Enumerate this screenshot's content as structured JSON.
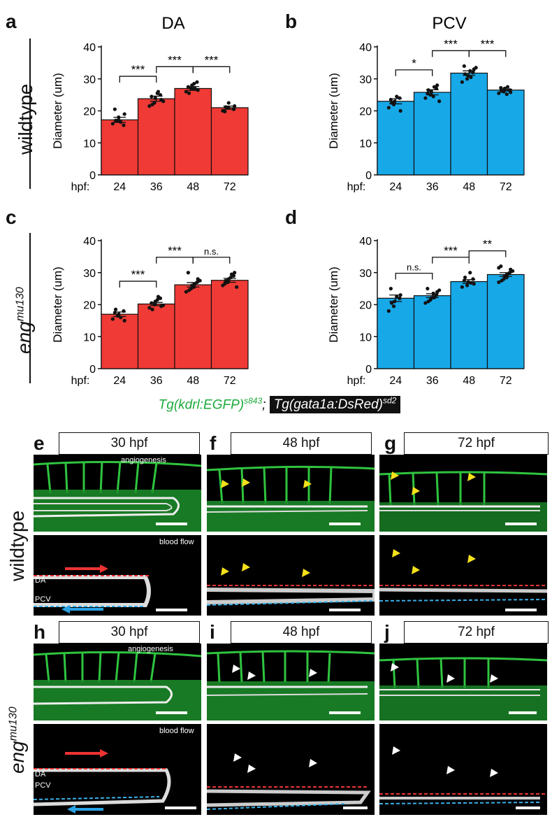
{
  "row_labels": {
    "wildtype": "wildtype",
    "mutant_gene": "eng",
    "mutant_allele": "mu130"
  },
  "panels": {
    "a": "a",
    "b": "b",
    "c": "c",
    "d": "d",
    "e": "e",
    "f": "f",
    "g": "g",
    "h": "h",
    "i": "i",
    "j": "j"
  },
  "colors": {
    "red_bar": "#ef3a35",
    "blue_bar": "#17a8e8",
    "green_text": "#1daa3c"
  },
  "legend": {
    "green_text": "Tg(kdrl:EGFP)",
    "green_sup": "s843",
    "separator": ";",
    "black_text": "Tg(gata1a:DsRed)",
    "black_sup": "sd2"
  },
  "chart_data": [
    {
      "id": "a",
      "type": "bar",
      "title": "DA",
      "ylabel": "Diameter (um)",
      "xprefix": "hpf:",
      "categories": [
        "24",
        "36",
        "48",
        "72"
      ],
      "values": [
        17.2,
        23.8,
        27.0,
        21.0
      ],
      "errors": [
        0.8,
        0.8,
        0.6,
        0.5
      ],
      "points": [
        [
          16,
          17,
          18,
          15.5,
          19,
          20.5,
          17,
          16.5
        ],
        [
          21.5,
          22.5,
          24,
          25,
          23.5,
          24.5,
          22,
          25.5,
          26,
          23
        ],
        [
          26,
          27,
          28,
          29,
          26.5,
          27.5,
          25.5,
          28.5,
          27
        ],
        [
          20,
          21,
          22.5,
          20.5,
          21.5,
          19.8,
          21.2
        ]
      ],
      "ylim": [
        0,
        40
      ],
      "yticks": [
        "0",
        "10",
        "20",
        "30",
        "40"
      ],
      "color": "#ef3a35",
      "significance": [
        [
          "24",
          "36",
          "***"
        ],
        [
          "36",
          "48",
          "***"
        ],
        [
          "48",
          "72",
          "***"
        ]
      ]
    },
    {
      "id": "b",
      "type": "bar",
      "title": "PCV",
      "ylabel": "Diameter (um)",
      "xprefix": "hpf:",
      "categories": [
        "24",
        "36",
        "48",
        "72"
      ],
      "values": [
        23.0,
        25.8,
        31.8,
        26.5
      ],
      "errors": [
        0.8,
        0.8,
        0.7,
        0.3
      ],
      "points": [
        [
          21,
          22,
          23,
          24,
          20,
          23.5,
          22.5,
          24.5
        ],
        [
          24,
          25,
          26,
          27,
          28,
          25.5,
          26.5,
          24.5,
          27.5,
          23
        ],
        [
          29,
          30,
          31,
          32,
          33,
          34,
          31.5,
          32.5,
          30.5,
          33.5
        ],
        [
          25.5,
          26,
          27,
          26.5,
          25.8,
          27.2,
          26.2,
          25.2,
          27.5
        ]
      ],
      "ylim": [
        0,
        40
      ],
      "yticks": [
        "0",
        "10",
        "20",
        "30",
        "40"
      ],
      "color": "#17a8e8",
      "significance": [
        [
          "24",
          "36",
          "*"
        ],
        [
          "36",
          "48",
          "***"
        ],
        [
          "48",
          "72",
          "***"
        ]
      ]
    },
    {
      "id": "c",
      "type": "bar",
      "title": "",
      "ylabel": "Diameter (um)",
      "xprefix": "hpf:",
      "categories": [
        "24",
        "36",
        "48",
        "72"
      ],
      "values": [
        17.0,
        20.2,
        26.2,
        27.6
      ],
      "errors": [
        0.7,
        0.5,
        0.7,
        0.6
      ],
      "points": [
        [
          15.5,
          16.5,
          17,
          18,
          15,
          17.5,
          18.5,
          16
        ],
        [
          19,
          20,
          21,
          22,
          19.5,
          20.5,
          18.5,
          21.5,
          22.5,
          19.8
        ],
        [
          24,
          25,
          26,
          27,
          28,
          30,
          24.5,
          25.5,
          26.5,
          27.5
        ],
        [
          26,
          27,
          28,
          29,
          30,
          26.5,
          27.5,
          28.5,
          29.5,
          25.5
        ]
      ],
      "ylim": [
        0,
        40
      ],
      "yticks": [
        "0",
        "10",
        "20",
        "30",
        "40"
      ],
      "color": "#ef3a35",
      "significance": [
        [
          "24",
          "36",
          "***"
        ],
        [
          "36",
          "48",
          "***"
        ],
        [
          "48",
          "72",
          "n.s."
        ]
      ]
    },
    {
      "id": "d",
      "type": "bar",
      "title": "",
      "ylabel": "Diameter (um)",
      "xprefix": "hpf:",
      "categories": [
        "24",
        "36",
        "48",
        "72"
      ],
      "values": [
        22.0,
        22.8,
        27.2,
        29.4
      ],
      "errors": [
        1.0,
        0.6,
        0.6,
        0.6
      ],
      "points": [
        [
          18,
          19.5,
          21,
          22,
          23,
          25,
          20.5,
          22.5
        ],
        [
          20.5,
          21.5,
          22,
          23,
          24,
          25,
          21,
          23.5,
          22.2,
          24.5
        ],
        [
          25.5,
          26,
          27,
          28,
          26.5,
          27.5,
          28.5,
          30,
          26.8
        ],
        [
          27,
          28,
          29,
          30,
          31,
          32,
          27.5,
          28.5,
          29.5,
          30.5,
          31.5
        ]
      ],
      "ylim": [
        0,
        40
      ],
      "yticks": [
        "0",
        "10",
        "20",
        "30",
        "40"
      ],
      "color": "#17a8e8",
      "significance": [
        [
          "24",
          "36",
          "n.s."
        ],
        [
          "36",
          "48",
          "***"
        ],
        [
          "48",
          "72",
          "**"
        ]
      ]
    }
  ],
  "images": {
    "e_title": "30 hpf",
    "f_title": "48 hpf",
    "g_title": "72 hpf",
    "h_title": "30 hpf",
    "i_title": "48 hpf",
    "j_title": "72 hpf",
    "angiogenesis": "angiogenesis",
    "blood_flow": "blood flow",
    "da": "DA",
    "pcv": "PCV"
  }
}
